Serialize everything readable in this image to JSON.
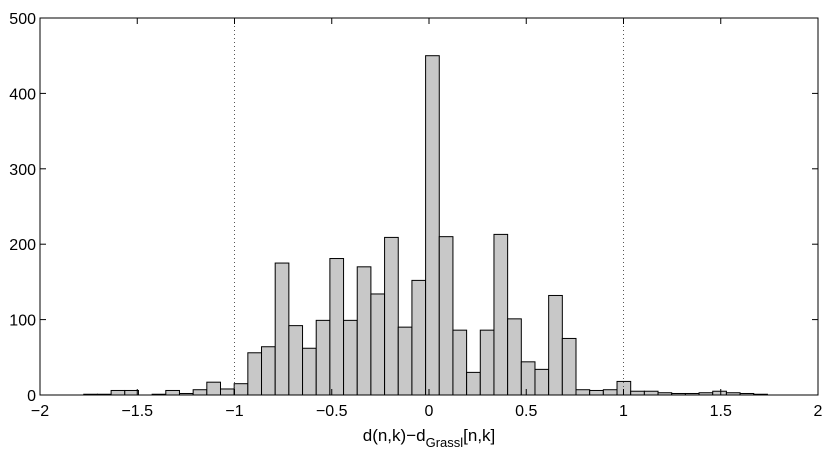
{
  "chart_data": {
    "type": "bar",
    "title": "",
    "xlabel": {
      "main": "d(n,k)−d",
      "subscript": "Grassl",
      "suffix": "[n,k]"
    },
    "ylabel": "",
    "xlim": [
      -2,
      2
    ],
    "ylim": [
      0,
      500
    ],
    "xticks": [
      -2,
      -1.5,
      -1,
      -0.5,
      0,
      0.5,
      1,
      1.5,
      2
    ],
    "xtick_labels": [
      "−2",
      "−1.5",
      "−1",
      "−0.5",
      "0",
      "0.5",
      "1",
      "1.5",
      "2"
    ],
    "yticks": [
      0,
      100,
      200,
      300,
      400,
      500
    ],
    "ytick_labels": [
      "0",
      "100",
      "200",
      "300",
      "400",
      "500"
    ],
    "grid": false,
    "reference_lines_x": [
      -1,
      1
    ],
    "bin_width": 0.0703,
    "bins_start": -1.775,
    "values": [
      1,
      1,
      6,
      6,
      0,
      1,
      6,
      2,
      7,
      17,
      8,
      15,
      56,
      64,
      175,
      92,
      62,
      99,
      181,
      99,
      170,
      134,
      209,
      90,
      152,
      450,
      210,
      86,
      30,
      86,
      213,
      101,
      44,
      34,
      132,
      75,
      7,
      6,
      7,
      18,
      5,
      5,
      3,
      2,
      2,
      3,
      5,
      3,
      2,
      1
    ],
    "colors": {
      "bar_fill": "#c8c8c8",
      "bar_stroke": "#000000",
      "ref_line": "#555555"
    }
  }
}
